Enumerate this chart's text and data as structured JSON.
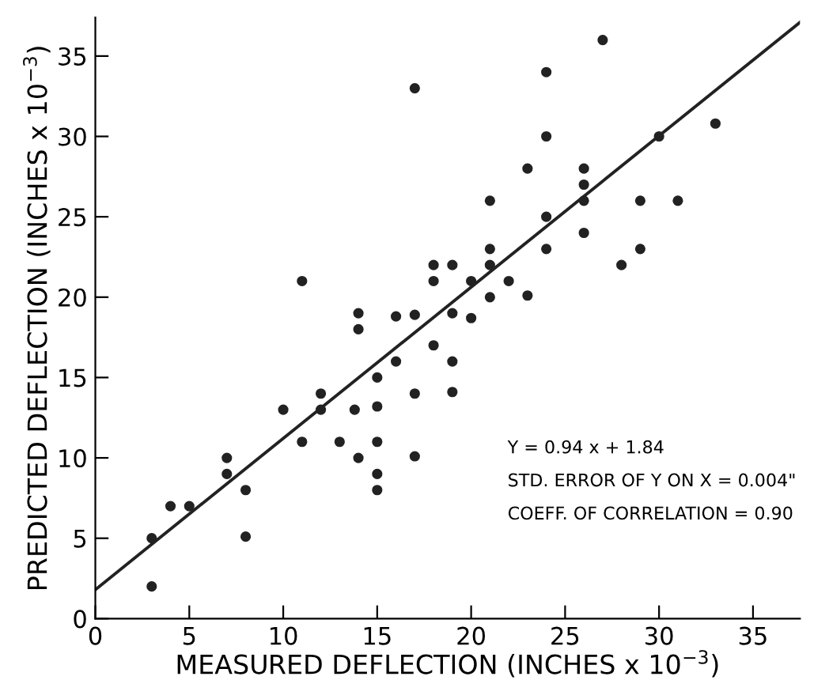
{
  "chart_data": {
    "type": "scatter",
    "xlabel": "MEASURED DEFLECTION (INCHES x 10$^{−3}$)",
    "ylabel": "PREDICTED DEFLECTION (INCHES x 10$^{−3}$)",
    "xlim": [
      0,
      37.5
    ],
    "ylim": [
      0,
      37.4
    ],
    "xticks": [
      0,
      5,
      10,
      15,
      20,
      25,
      30,
      35
    ],
    "yticks": [
      0,
      5,
      10,
      15,
      20,
      25,
      30,
      35
    ],
    "grid": false,
    "series": [
      {
        "color": "#222222",
        "marker": "circle",
        "x": [
          3,
          3,
          4,
          5,
          7,
          7,
          8,
          8,
          10,
          11,
          11,
          12,
          12,
          13,
          13.8,
          14,
          14,
          14,
          15,
          15,
          15,
          15,
          15,
          16,
          16,
          17,
          17,
          17,
          17,
          18,
          18,
          18,
          19,
          19,
          19,
          19,
          20,
          20,
          21,
          21,
          21,
          21,
          22,
          23,
          23,
          24,
          24,
          24,
          24,
          26,
          26,
          26,
          26,
          27,
          28,
          29,
          29,
          30,
          31,
          33
        ],
        "values": [
          5,
          2,
          7,
          7,
          10,
          9,
          8,
          5.1,
          13,
          21,
          11,
          14,
          13,
          11,
          13,
          19,
          18,
          10,
          15,
          13.2,
          11,
          9,
          8,
          18.8,
          16,
          33,
          18.9,
          14,
          10.1,
          22,
          21,
          17,
          22,
          19,
          16,
          14.1,
          21,
          18.7,
          26,
          23,
          22,
          20,
          21,
          28,
          20.1,
          34,
          30,
          25,
          23,
          28,
          27,
          26,
          24,
          36,
          22,
          26,
          23,
          30,
          26,
          30.8
        ]
      },
      {
        "type": "line",
        "color": "#222222",
        "line_style": "solid",
        "x": [
          0,
          37.5
        ],
        "values": [
          1.8,
          37.1
        ]
      }
    ],
    "annotations": [
      "Y = 0.94 x + 1.84",
      "STD. ERROR OF Y ON X = 0.004\"",
      "COEFF. OF CORRELATION = 0.90"
    ]
  }
}
